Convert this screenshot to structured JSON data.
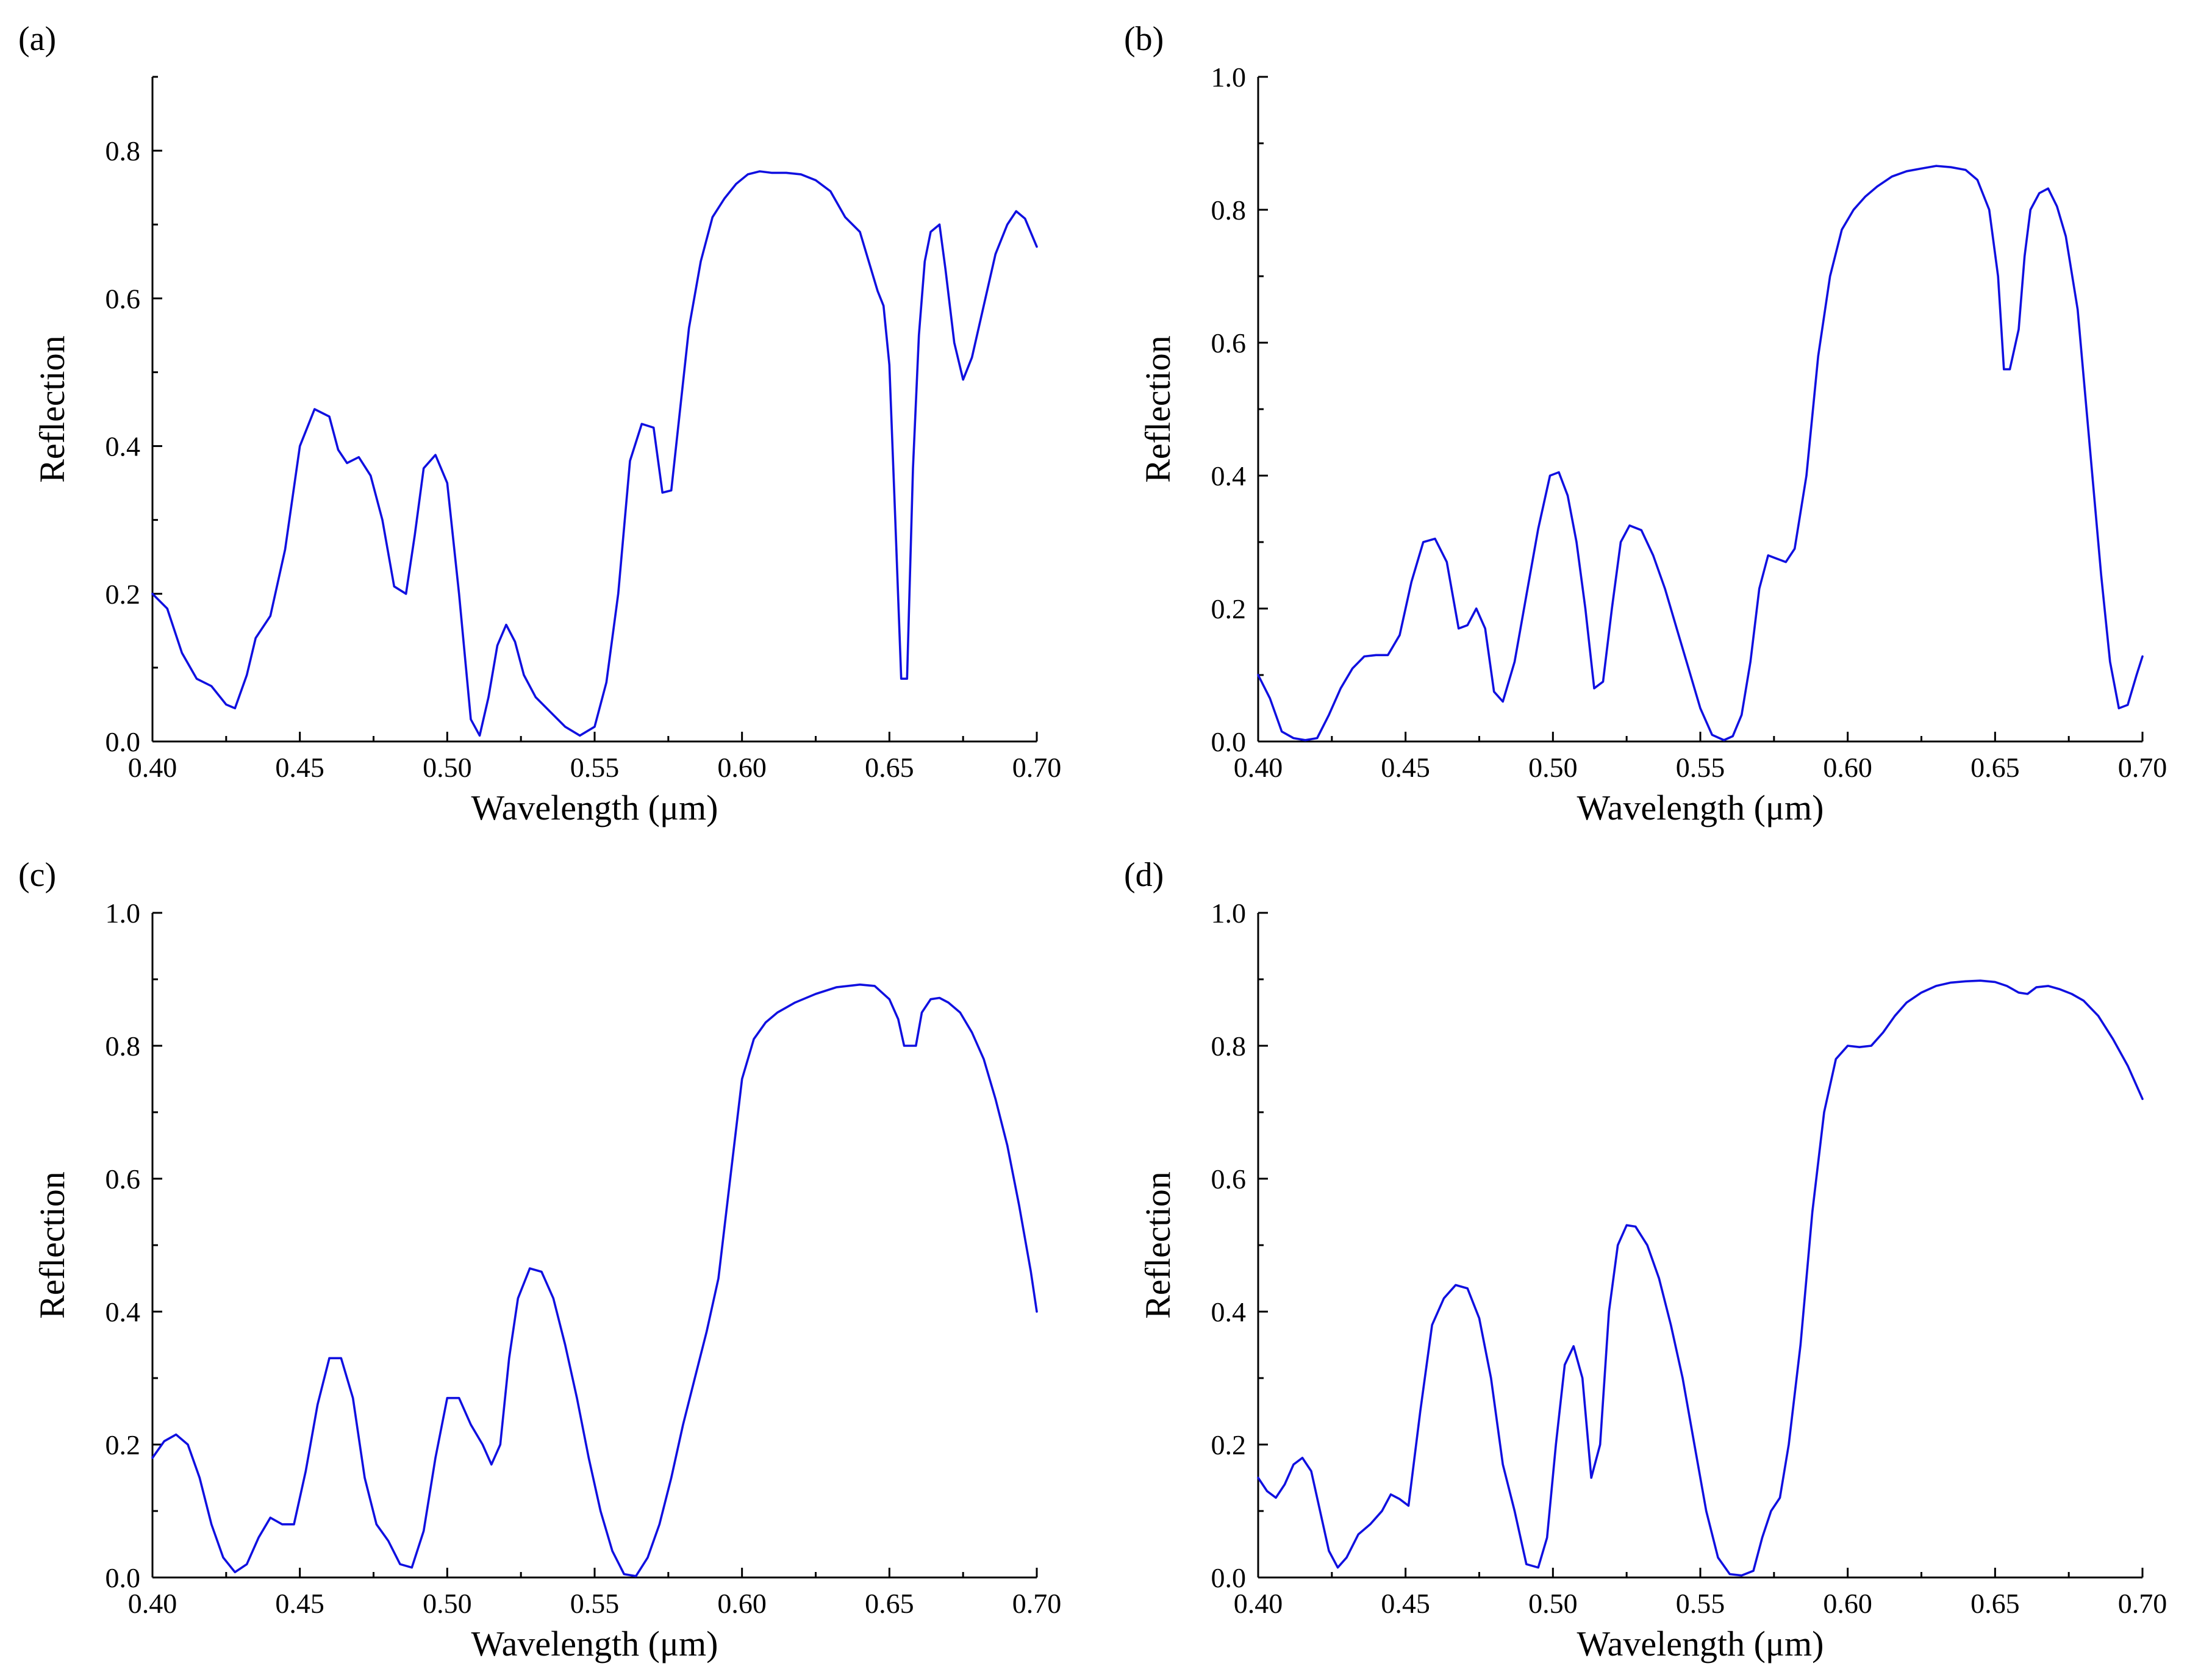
{
  "chart_data": [
    {
      "panel_label": "(a)",
      "type": "line",
      "xlabel": "Wavelength (μm)",
      "ylabel": "Reflection",
      "xlim": [
        0.4,
        0.7
      ],
      "ylim": [
        0.0,
        0.9
      ],
      "xticks": [
        "0.40",
        "0.45",
        "0.50",
        "0.55",
        "0.60",
        "0.65",
        "0.70"
      ],
      "yticks": [
        "0.0",
        "0.2",
        "0.4",
        "0.6",
        "0.8"
      ],
      "color": "#1010e0",
      "series": [
        {
          "name": "Reflection",
          "x": [
            0.4,
            0.405,
            0.41,
            0.415,
            0.42,
            0.425,
            0.428,
            0.432,
            0.435,
            0.44,
            0.445,
            0.45,
            0.455,
            0.46,
            0.463,
            0.466,
            0.47,
            0.474,
            0.478,
            0.482,
            0.486,
            0.489,
            0.492,
            0.496,
            0.5,
            0.504,
            0.508,
            0.511,
            0.514,
            0.517,
            0.52,
            0.523,
            0.526,
            0.53,
            0.535,
            0.54,
            0.545,
            0.55,
            0.554,
            0.558,
            0.562,
            0.566,
            0.57,
            0.573,
            0.576,
            0.579,
            0.582,
            0.586,
            0.59,
            0.594,
            0.598,
            0.602,
            0.606,
            0.61,
            0.615,
            0.62,
            0.625,
            0.63,
            0.635,
            0.64,
            0.643,
            0.646,
            0.648,
            0.65,
            0.652,
            0.654,
            0.656,
            0.658,
            0.66,
            0.662,
            0.664,
            0.667,
            0.669,
            0.672,
            0.675,
            0.678,
            0.682,
            0.686,
            0.69,
            0.693,
            0.696,
            0.7
          ],
          "y": [
            0.2,
            0.18,
            0.12,
            0.085,
            0.075,
            0.05,
            0.045,
            0.09,
            0.14,
            0.17,
            0.26,
            0.4,
            0.45,
            0.44,
            0.395,
            0.377,
            0.385,
            0.36,
            0.3,
            0.21,
            0.2,
            0.28,
            0.37,
            0.388,
            0.35,
            0.2,
            0.03,
            0.008,
            0.06,
            0.13,
            0.158,
            0.135,
            0.09,
            0.06,
            0.04,
            0.02,
            0.008,
            0.02,
            0.08,
            0.2,
            0.38,
            0.43,
            0.425,
            0.337,
            0.34,
            0.45,
            0.56,
            0.65,
            0.71,
            0.735,
            0.755,
            0.768,
            0.772,
            0.77,
            0.77,
            0.768,
            0.76,
            0.745,
            0.71,
            0.69,
            0.65,
            0.61,
            0.59,
            0.51,
            0.3,
            0.085,
            0.085,
            0.37,
            0.55,
            0.65,
            0.69,
            0.7,
            0.64,
            0.54,
            0.49,
            0.52,
            0.59,
            0.66,
            0.7,
            0.718,
            0.708,
            0.67
          ]
        }
      ]
    },
    {
      "panel_label": "(b)",
      "type": "line",
      "xlabel": "Wavelength (μm)",
      "ylabel": "Reflection",
      "xlim": [
        0.4,
        0.7
      ],
      "ylim": [
        0.0,
        1.0
      ],
      "xticks": [
        "0.40",
        "0.45",
        "0.50",
        "0.55",
        "0.60",
        "0.65",
        "0.70"
      ],
      "yticks": [
        "0.0",
        "0.2",
        "0.4",
        "0.6",
        "0.8",
        "1.0"
      ],
      "color": "#1010e0",
      "series": [
        {
          "name": "Reflection",
          "x": [
            0.4,
            0.404,
            0.408,
            0.412,
            0.416,
            0.42,
            0.424,
            0.428,
            0.432,
            0.436,
            0.44,
            0.444,
            0.448,
            0.452,
            0.456,
            0.46,
            0.464,
            0.468,
            0.471,
            0.474,
            0.477,
            0.48,
            0.483,
            0.487,
            0.491,
            0.495,
            0.499,
            0.502,
            0.505,
            0.508,
            0.511,
            0.514,
            0.517,
            0.52,
            0.523,
            0.526,
            0.53,
            0.534,
            0.538,
            0.542,
            0.546,
            0.55,
            0.554,
            0.558,
            0.561,
            0.564,
            0.567,
            0.57,
            0.573,
            0.576,
            0.579,
            0.582,
            0.586,
            0.59,
            0.594,
            0.598,
            0.602,
            0.606,
            0.61,
            0.615,
            0.62,
            0.625,
            0.63,
            0.635,
            0.64,
            0.644,
            0.648,
            0.651,
            0.653,
            0.655,
            0.658,
            0.66,
            0.662,
            0.665,
            0.668,
            0.671,
            0.674,
            0.678,
            0.682,
            0.686,
            0.689,
            0.692,
            0.695,
            0.698,
            0.7
          ],
          "y": [
            0.1,
            0.065,
            0.015,
            0.005,
            0.002,
            0.005,
            0.04,
            0.08,
            0.11,
            0.128,
            0.13,
            0.13,
            0.16,
            0.24,
            0.3,
            0.305,
            0.27,
            0.17,
            0.175,
            0.2,
            0.17,
            0.075,
            0.06,
            0.12,
            0.22,
            0.32,
            0.4,
            0.405,
            0.37,
            0.3,
            0.2,
            0.08,
            0.09,
            0.2,
            0.3,
            0.325,
            0.318,
            0.28,
            0.23,
            0.17,
            0.11,
            0.05,
            0.01,
            0.002,
            0.008,
            0.04,
            0.12,
            0.23,
            0.28,
            0.275,
            0.27,
            0.29,
            0.4,
            0.58,
            0.7,
            0.77,
            0.8,
            0.82,
            0.835,
            0.85,
            0.858,
            0.862,
            0.866,
            0.864,
            0.86,
            0.845,
            0.8,
            0.7,
            0.56,
            0.56,
            0.62,
            0.73,
            0.8,
            0.825,
            0.832,
            0.805,
            0.76,
            0.65,
            0.45,
            0.25,
            0.12,
            0.05,
            0.055,
            0.1,
            0.128
          ]
        }
      ]
    },
    {
      "panel_label": "(c)",
      "type": "line",
      "xlabel": "Wavelength (μm)",
      "ylabel": "Reflection",
      "xlim": [
        0.4,
        0.7
      ],
      "ylim": [
        0.0,
        1.0
      ],
      "xticks": [
        "0.40",
        "0.45",
        "0.50",
        "0.55",
        "0.60",
        "0.65",
        "0.70"
      ],
      "yticks": [
        "0.0",
        "0.2",
        "0.4",
        "0.6",
        "0.8",
        "1.0"
      ],
      "color": "#1010e0",
      "series": [
        {
          "name": "Reflection",
          "x": [
            0.4,
            0.404,
            0.408,
            0.412,
            0.416,
            0.42,
            0.424,
            0.428,
            0.432,
            0.436,
            0.44,
            0.444,
            0.448,
            0.452,
            0.456,
            0.46,
            0.464,
            0.468,
            0.472,
            0.476,
            0.48,
            0.484,
            0.488,
            0.492,
            0.496,
            0.5,
            0.504,
            0.508,
            0.512,
            0.515,
            0.518,
            0.521,
            0.524,
            0.528,
            0.532,
            0.536,
            0.54,
            0.544,
            0.548,
            0.552,
            0.556,
            0.56,
            0.564,
            0.568,
            0.572,
            0.576,
            0.58,
            0.584,
            0.588,
            0.592,
            0.596,
            0.6,
            0.604,
            0.608,
            0.612,
            0.618,
            0.625,
            0.632,
            0.64,
            0.645,
            0.65,
            0.653,
            0.655,
            0.657,
            0.659,
            0.661,
            0.664,
            0.667,
            0.67,
            0.674,
            0.678,
            0.682,
            0.686,
            0.69,
            0.694,
            0.698,
            0.7
          ],
          "y": [
            0.18,
            0.205,
            0.215,
            0.2,
            0.15,
            0.08,
            0.03,
            0.008,
            0.02,
            0.06,
            0.09,
            0.08,
            0.08,
            0.16,
            0.26,
            0.33,
            0.33,
            0.27,
            0.15,
            0.08,
            0.055,
            0.02,
            0.015,
            0.07,
            0.18,
            0.27,
            0.27,
            0.23,
            0.2,
            0.17,
            0.2,
            0.33,
            0.42,
            0.465,
            0.46,
            0.42,
            0.35,
            0.27,
            0.18,
            0.1,
            0.04,
            0.005,
            0.002,
            0.03,
            0.08,
            0.15,
            0.23,
            0.3,
            0.37,
            0.45,
            0.6,
            0.75,
            0.81,
            0.835,
            0.85,
            0.865,
            0.878,
            0.888,
            0.892,
            0.89,
            0.87,
            0.84,
            0.8,
            0.8,
            0.8,
            0.85,
            0.87,
            0.872,
            0.865,
            0.85,
            0.82,
            0.78,
            0.72,
            0.65,
            0.56,
            0.46,
            0.4
          ]
        }
      ]
    },
    {
      "panel_label": "(d)",
      "type": "line",
      "xlabel": "Wavelength (μm)",
      "ylabel": "Reflection",
      "xlim": [
        0.4,
        0.7
      ],
      "ylim": [
        0.0,
        1.0
      ],
      "xticks": [
        "0.40",
        "0.45",
        "0.50",
        "0.55",
        "0.60",
        "0.65",
        "0.70"
      ],
      "yticks": [
        "0.0",
        "0.2",
        "0.4",
        "0.6",
        "0.8",
        "1.0"
      ],
      "color": "#1010e0",
      "series": [
        {
          "name": "Reflection",
          "x": [
            0.4,
            0.403,
            0.406,
            0.409,
            0.412,
            0.415,
            0.418,
            0.421,
            0.424,
            0.427,
            0.43,
            0.434,
            0.438,
            0.442,
            0.445,
            0.448,
            0.451,
            0.455,
            0.459,
            0.463,
            0.467,
            0.471,
            0.475,
            0.479,
            0.483,
            0.487,
            0.491,
            0.495,
            0.498,
            0.501,
            0.504,
            0.507,
            0.51,
            0.513,
            0.516,
            0.519,
            0.522,
            0.525,
            0.528,
            0.532,
            0.536,
            0.54,
            0.544,
            0.548,
            0.552,
            0.556,
            0.56,
            0.564,
            0.568,
            0.571,
            0.574,
            0.577,
            0.58,
            0.584,
            0.588,
            0.592,
            0.596,
            0.6,
            0.604,
            0.608,
            0.612,
            0.616,
            0.62,
            0.625,
            0.63,
            0.635,
            0.64,
            0.645,
            0.65,
            0.654,
            0.658,
            0.661,
            0.664,
            0.668,
            0.672,
            0.676,
            0.68,
            0.685,
            0.69,
            0.695,
            0.7
          ],
          "y": [
            0.15,
            0.13,
            0.12,
            0.14,
            0.17,
            0.18,
            0.16,
            0.1,
            0.04,
            0.015,
            0.03,
            0.065,
            0.08,
            0.1,
            0.125,
            0.118,
            0.108,
            0.25,
            0.38,
            0.42,
            0.44,
            0.435,
            0.39,
            0.3,
            0.17,
            0.1,
            0.02,
            0.015,
            0.06,
            0.2,
            0.32,
            0.348,
            0.3,
            0.15,
            0.2,
            0.4,
            0.5,
            0.53,
            0.528,
            0.5,
            0.45,
            0.38,
            0.3,
            0.2,
            0.1,
            0.03,
            0.005,
            0.003,
            0.01,
            0.06,
            0.1,
            0.12,
            0.2,
            0.35,
            0.55,
            0.7,
            0.78,
            0.8,
            0.798,
            0.8,
            0.82,
            0.845,
            0.865,
            0.88,
            0.89,
            0.895,
            0.897,
            0.898,
            0.896,
            0.89,
            0.88,
            0.878,
            0.888,
            0.89,
            0.885,
            0.878,
            0.868,
            0.845,
            0.81,
            0.77,
            0.72
          ]
        }
      ]
    }
  ]
}
